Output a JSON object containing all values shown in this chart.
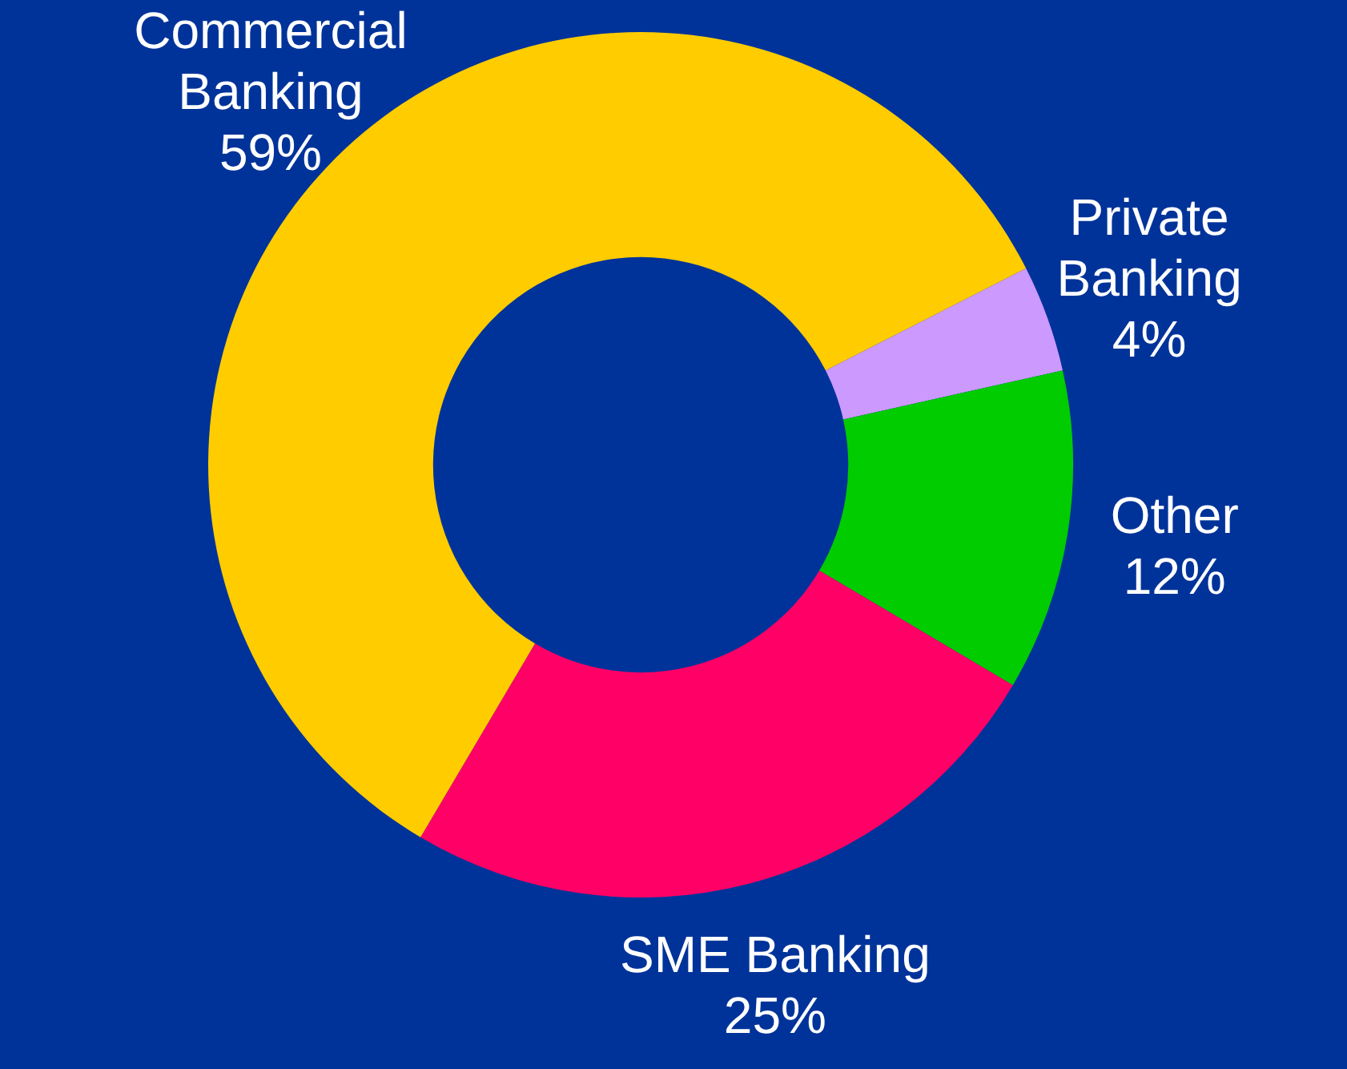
{
  "chart_data": {
    "type": "donut",
    "categories": [
      "Private Banking",
      "Other",
      "SME Banking",
      "Commercial Banking"
    ],
    "values": [
      4,
      12,
      25,
      59
    ],
    "colors": [
      "#cc99ff",
      "#00cc00",
      "#ff0066",
      "#ffcc00"
    ],
    "value_labels": [
      "4%",
      "12%",
      "25%",
      "59%"
    ],
    "legend": false
  }
}
